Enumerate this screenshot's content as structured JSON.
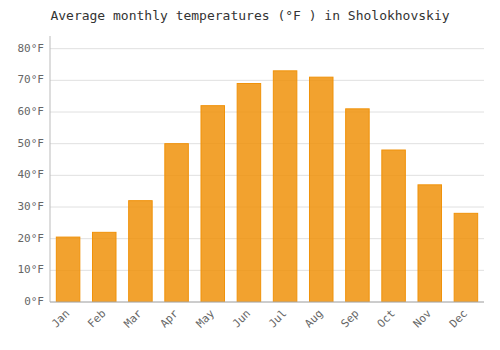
{
  "chart_data": {
    "type": "bar",
    "title": "Average monthly temperatures (°F ) in Sholokhovskiy",
    "categories": [
      "Jan",
      "Feb",
      "Mar",
      "Apr",
      "May",
      "Jun",
      "Jul",
      "Aug",
      "Sep",
      "Oct",
      "Nov",
      "Dec"
    ],
    "values": [
      20.5,
      22.0,
      32.0,
      50.0,
      62.0,
      69.0,
      73.0,
      71.0,
      61.0,
      48.0,
      37.0,
      28.0
    ],
    "color": "#F0920A",
    "ylim": [
      0,
      84
    ],
    "yticks": [
      {
        "value": 0,
        "label": "0°F"
      },
      {
        "value": 10,
        "label": "10°F"
      },
      {
        "value": 20,
        "label": "20°F"
      },
      {
        "value": 30,
        "label": "30°F"
      },
      {
        "value": 40,
        "label": "40°F"
      },
      {
        "value": 50,
        "label": "50°F"
      },
      {
        "value": 60,
        "label": "60°F"
      },
      {
        "value": 70,
        "label": "70°F"
      },
      {
        "value": 80,
        "label": "80°F"
      }
    ],
    "grid": true
  }
}
